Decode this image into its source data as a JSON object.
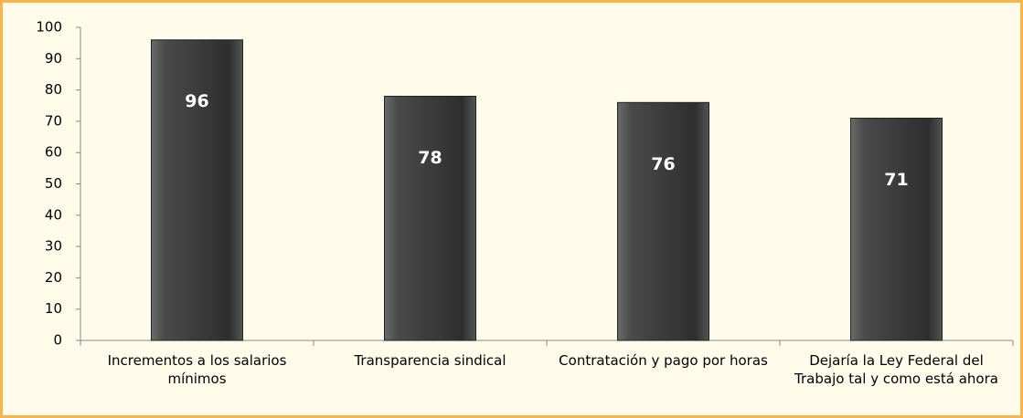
{
  "chart_data": {
    "type": "bar",
    "categories": [
      "Incrementos a los salarios mínimos",
      "Transparencia sindical",
      "Contratación y pago por horas",
      "Dejaría la Ley Federal del Trabajo tal y como está ahora"
    ],
    "values": [
      96,
      78,
      76,
      71
    ],
    "color": "#3a3a3a",
    "ylim": [
      0,
      100
    ],
    "yticks": [
      0,
      10,
      20,
      30,
      40,
      50,
      60,
      70,
      80,
      90,
      100
    ],
    "grid": false
  }
}
